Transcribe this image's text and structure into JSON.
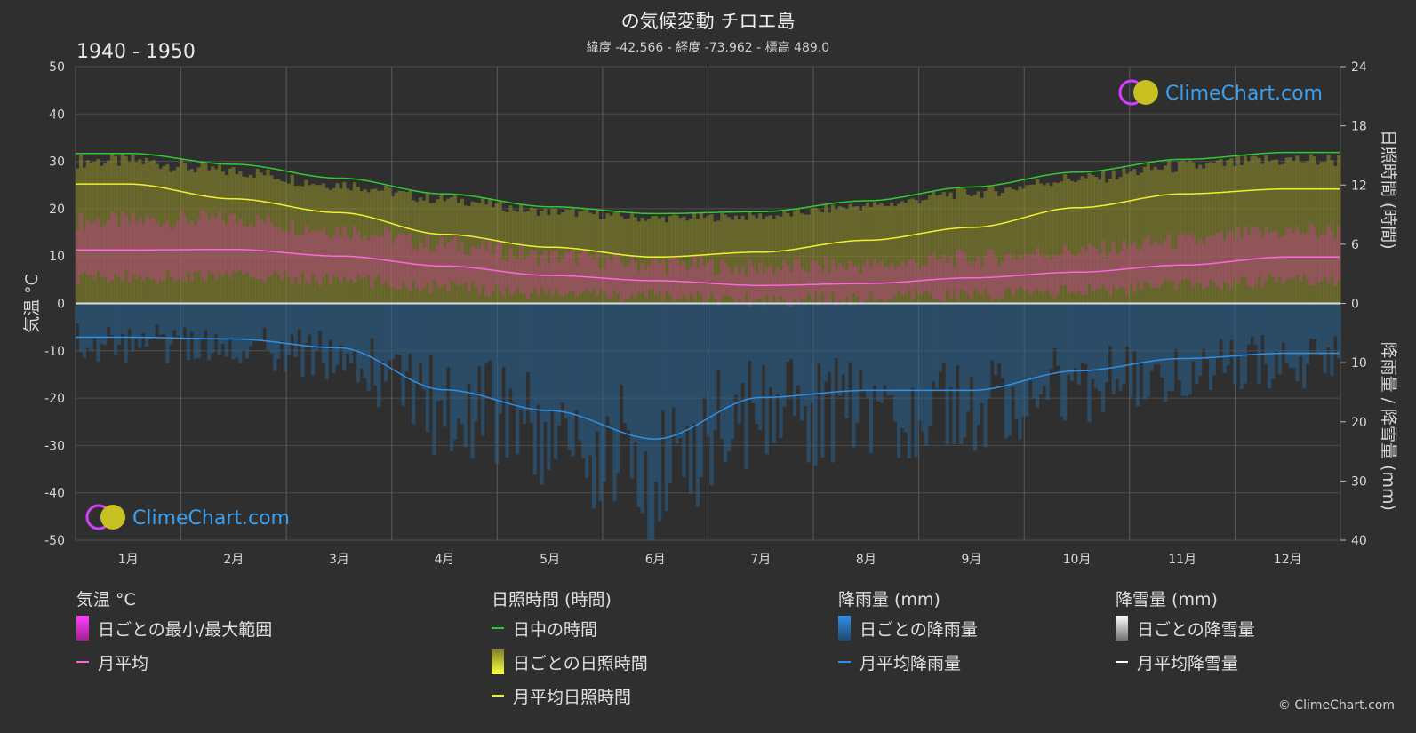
{
  "header": {
    "title": "の気候変動 チロエ島",
    "subtitle": "緯度 -42.566 - 経度 -73.962 - 標高 489.0",
    "period": "1940 - 1950"
  },
  "watermark": {
    "text": "ClimeChart.com"
  },
  "copyright": "© ClimeChart.com",
  "colors": {
    "background": "#2f2f2f",
    "daylight": "#2ecc2e",
    "sunshine_mean": "#f0f030",
    "sunshine_bars": "#8f8f2a",
    "temp_range": "#c2408f",
    "temp_mean": "#ff66dd",
    "rain_bars": "#2a5f8a",
    "rain_mean": "#2f90e8",
    "snow_mean": "#ffffff",
    "watermark_text": "#3aa0f0"
  },
  "chart_data": {
    "type": "line",
    "categories": [
      "1月",
      "2月",
      "3月",
      "4月",
      "5月",
      "6月",
      "7月",
      "8月",
      "9月",
      "10月",
      "11月",
      "12月"
    ],
    "left_axis": {
      "label": "気温 °C",
      "range": [
        -50,
        50
      ],
      "ticks": [
        "50",
        "40",
        "30",
        "20",
        "10",
        "0",
        "-10",
        "-20",
        "-30",
        "-40",
        "-50"
      ]
    },
    "right_axis_top": {
      "label": "日照時間 (時間)",
      "range": [
        0,
        24
      ],
      "ticks": [
        "24",
        "18",
        "12",
        "6",
        "0"
      ]
    },
    "right_axis_bottom": {
      "label": "降雨量 / 降雪量 (mm)",
      "range": [
        0,
        40
      ],
      "ticks": [
        "0",
        "10",
        "20",
        "30",
        "40"
      ]
    },
    "series": [
      {
        "name": "日中の時間",
        "unit": "hours",
        "values": [
          15.2,
          14.1,
          12.7,
          11.1,
          9.8,
          9.1,
          9.3,
          10.4,
          11.8,
          13.3,
          14.6,
          15.3
        ]
      },
      {
        "name": "月平均日照時間",
        "unit": "hours",
        "values": [
          12.1,
          10.6,
          9.2,
          7.0,
          5.7,
          4.7,
          5.2,
          6.4,
          7.7,
          9.7,
          11.1,
          11.6
        ]
      },
      {
        "name": "月平均",
        "unit": "°C",
        "values": [
          11.3,
          11.4,
          10.0,
          7.9,
          5.9,
          4.8,
          3.8,
          4.2,
          5.4,
          6.6,
          8.1,
          9.8
        ]
      },
      {
        "name": "月平均降雨量",
        "unit": "mm",
        "values": [
          5.7,
          6.0,
          7.5,
          14.6,
          18.1,
          22.9,
          15.9,
          14.7,
          14.7,
          11.4,
          9.3,
          8.4
        ]
      },
      {
        "name": "月平均降雪量",
        "unit": "mm",
        "values": [
          0,
          0,
          0,
          0,
          0,
          0,
          0,
          0,
          0,
          0,
          0,
          0
        ]
      }
    ],
    "temp_daily_range": {
      "min": [
        5.5,
        5.8,
        5.0,
        3.5,
        2.2,
        1.5,
        0.8,
        1.0,
        1.8,
        2.6,
        3.8,
        5.0
      ],
      "max": [
        17.5,
        17.8,
        15.6,
        12.5,
        9.9,
        8.4,
        7.5,
        8.0,
        9.5,
        11.1,
        13.1,
        15.2
      ]
    }
  },
  "legend": {
    "temperature": {
      "title": "気温 °C",
      "items": [
        "日ごとの最小/最大範囲",
        "月平均"
      ]
    },
    "sunshine": {
      "title": "日照時間 (時間)",
      "items": [
        "日中の時間",
        "日ごとの日照時間",
        "月平均日照時間"
      ]
    },
    "rain": {
      "title": "降雨量 (mm)",
      "items": [
        "日ごとの降雨量",
        "月平均降雨量"
      ]
    },
    "snow": {
      "title": "降雪量 (mm)",
      "items": [
        "日ごとの降雪量",
        "月平均降雪量"
      ]
    }
  }
}
